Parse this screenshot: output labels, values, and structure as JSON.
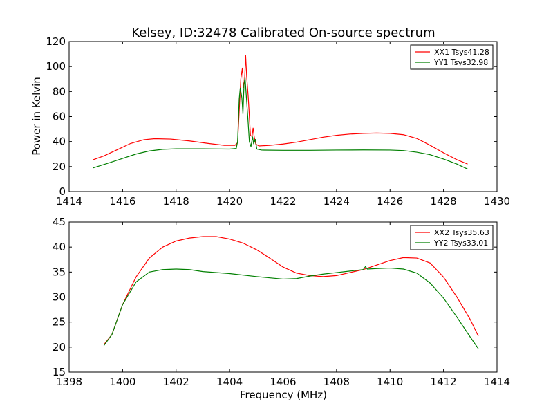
{
  "title": "Kelsey, ID:32478 Calibrated On-source spectrum",
  "colors": {
    "red": "#ff0000",
    "green": "#007f00"
  },
  "chart_data": [
    {
      "type": "line",
      "ylabel": "Power in Kelvin",
      "xlabel": "",
      "xlim": [
        1414,
        1430
      ],
      "ylim": [
        0,
        120
      ],
      "xticks": [
        "1414",
        "1416",
        "1418",
        "1420",
        "1422",
        "1424",
        "1426",
        "1428",
        "1430"
      ],
      "yticks": [
        "0",
        "20",
        "40",
        "60",
        "80",
        "100",
        "120"
      ],
      "legend_position": "top-right",
      "series": [
        {
          "name": "XX1 Tsys41.28",
          "color": "#ff0000",
          "points": [
            [
              1414.9,
              25.5
            ],
            [
              1415.3,
              28.5
            ],
            [
              1415.8,
              33.5
            ],
            [
              1416.3,
              38.5
            ],
            [
              1416.8,
              41.5
            ],
            [
              1417.2,
              42.3
            ],
            [
              1417.8,
              42
            ],
            [
              1418.5,
              40.5
            ],
            [
              1419.2,
              38.5
            ],
            [
              1419.8,
              37
            ],
            [
              1420.2,
              37
            ],
            [
              1420.3,
              39
            ],
            [
              1420.35,
              60
            ],
            [
              1420.42,
              90
            ],
            [
              1420.48,
              99
            ],
            [
              1420.52,
              83
            ],
            [
              1420.56,
              88
            ],
            [
              1420.6,
              109
            ],
            [
              1420.64,
              92
            ],
            [
              1420.7,
              75
            ],
            [
              1420.78,
              45
            ],
            [
              1420.84,
              44
            ],
            [
              1420.88,
              51
            ],
            [
              1420.92,
              44
            ],
            [
              1420.98,
              38
            ],
            [
              1421.1,
              36.5
            ],
            [
              1421.5,
              37
            ],
            [
              1422,
              38
            ],
            [
              1422.5,
              39.5
            ],
            [
              1423,
              41.5
            ],
            [
              1423.5,
              43.5
            ],
            [
              1424,
              45
            ],
            [
              1424.5,
              46
            ],
            [
              1425,
              46.5
            ],
            [
              1425.5,
              46.8
            ],
            [
              1426,
              46.5
            ],
            [
              1426.5,
              45.5
            ],
            [
              1427,
              42.5
            ],
            [
              1427.5,
              37
            ],
            [
              1428,
              31
            ],
            [
              1428.5,
              25.5
            ],
            [
              1428.9,
              22
            ]
          ]
        },
        {
          "name": "YY1 Tsys32.98",
          "color": "#007f00",
          "points": [
            [
              1414.9,
              19
            ],
            [
              1415.5,
              23
            ],
            [
              1416,
              26.5
            ],
            [
              1416.5,
              30
            ],
            [
              1417,
              32.5
            ],
            [
              1417.5,
              33.8
            ],
            [
              1418,
              34.2
            ],
            [
              1419,
              34.2
            ],
            [
              1420,
              34
            ],
            [
              1420.25,
              34.5
            ],
            [
              1420.3,
              40
            ],
            [
              1420.36,
              74
            ],
            [
              1420.4,
              83
            ],
            [
              1420.46,
              75
            ],
            [
              1420.5,
              62
            ],
            [
              1420.54,
              86
            ],
            [
              1420.58,
              91
            ],
            [
              1420.62,
              78
            ],
            [
              1420.68,
              60
            ],
            [
              1420.74,
              40
            ],
            [
              1420.8,
              36
            ],
            [
              1420.86,
              44
            ],
            [
              1420.9,
              38
            ],
            [
              1420.96,
              42
            ],
            [
              1421.02,
              34
            ],
            [
              1421.2,
              33.2
            ],
            [
              1422,
              33
            ],
            [
              1423,
              33
            ],
            [
              1424,
              33.2
            ],
            [
              1425,
              33.3
            ],
            [
              1426,
              33.2
            ],
            [
              1426.5,
              32.8
            ],
            [
              1427,
              31.5
            ],
            [
              1427.5,
              29.5
            ],
            [
              1428,
              26
            ],
            [
              1428.5,
              22
            ],
            [
              1428.9,
              18
            ]
          ]
        }
      ]
    },
    {
      "type": "line",
      "ylabel": "",
      "xlabel": "Frequency (MHz)",
      "xlim": [
        1398,
        1414
      ],
      "ylim": [
        15,
        45
      ],
      "xticks": [
        "1398",
        "1400",
        "1402",
        "1404",
        "1406",
        "1408",
        "1410",
        "1412",
        "1414"
      ],
      "yticks": [
        "15",
        "20",
        "25",
        "30",
        "35",
        "40",
        "45"
      ],
      "legend_position": "top-right",
      "series": [
        {
          "name": "XX2 Tsys35.63",
          "color": "#ff0000",
          "points": [
            [
              1399.3,
              20.5
            ],
            [
              1399.6,
              22.5
            ],
            [
              1400,
              28.5
            ],
            [
              1400.5,
              34
            ],
            [
              1401,
              37.8
            ],
            [
              1401.5,
              40
            ],
            [
              1402,
              41.2
            ],
            [
              1402.5,
              41.8
            ],
            [
              1403,
              42.1
            ],
            [
              1403.5,
              42.1
            ],
            [
              1404,
              41.6
            ],
            [
              1404.5,
              40.8
            ],
            [
              1405,
              39.5
            ],
            [
              1405.5,
              37.8
            ],
            [
              1406,
              36
            ],
            [
              1406.5,
              34.8
            ],
            [
              1407,
              34.3
            ],
            [
              1407.5,
              34.1
            ],
            [
              1408,
              34.3
            ],
            [
              1408.5,
              34.9
            ],
            [
              1409,
              35.5
            ],
            [
              1409.5,
              36.4
            ],
            [
              1410,
              37.3
            ],
            [
              1410.5,
              37.9
            ],
            [
              1411,
              37.8
            ],
            [
              1411.5,
              36.8
            ],
            [
              1412,
              34
            ],
            [
              1412.5,
              30
            ],
            [
              1413,
              25.5
            ],
            [
              1413.3,
              22.2
            ]
          ]
        },
        {
          "name": "YY2 Tsys33.01",
          "color": "#007f00",
          "points": [
            [
              1399.3,
              20.3
            ],
            [
              1399.6,
              22.5
            ],
            [
              1400,
              28.5
            ],
            [
              1400.5,
              33
            ],
            [
              1401,
              35
            ],
            [
              1401.5,
              35.5
            ],
            [
              1402,
              35.6
            ],
            [
              1402.5,
              35.5
            ],
            [
              1403,
              35.1
            ],
            [
              1404,
              34.7
            ],
            [
              1405,
              34.1
            ],
            [
              1406,
              33.6
            ],
            [
              1406.5,
              33.7
            ],
            [
              1407,
              34.2
            ],
            [
              1407.5,
              34.6
            ],
            [
              1408,
              34.9
            ],
            [
              1408.5,
              35.2
            ],
            [
              1409,
              35.5
            ],
            [
              1409.08,
              36.1
            ],
            [
              1409.15,
              35.6
            ],
            [
              1409.5,
              35.7
            ],
            [
              1410,
              35.8
            ],
            [
              1410.5,
              35.6
            ],
            [
              1411,
              34.8
            ],
            [
              1411.5,
              32.8
            ],
            [
              1412,
              29.8
            ],
            [
              1412.5,
              26
            ],
            [
              1413,
              22
            ],
            [
              1413.3,
              19.7
            ]
          ]
        }
      ]
    }
  ]
}
